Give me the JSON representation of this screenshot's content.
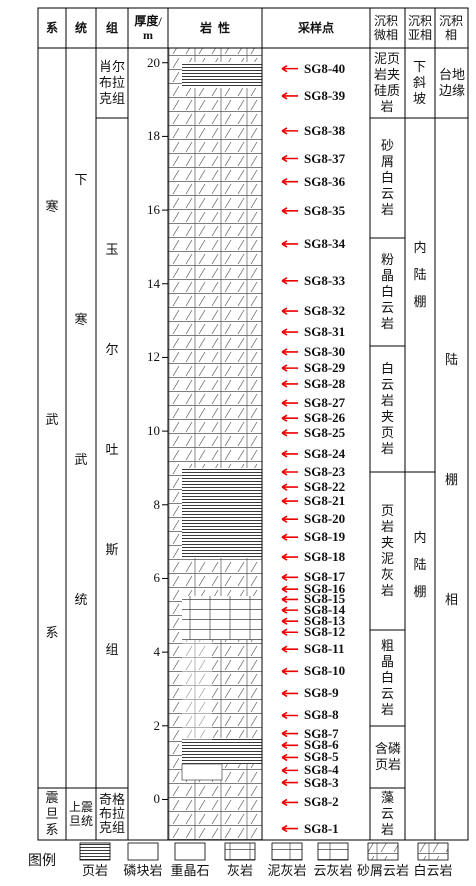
{
  "header": {
    "system": "系",
    "series": "统",
    "formation": "组",
    "thickness": "厚度/m",
    "lithology": "岩  性",
    "samples": "采样点",
    "microfacies": "沉积微相",
    "subfacies": "沉积亚相",
    "facies": "沉积相"
  },
  "systems": [
    "寒武系",
    "震旦系"
  ],
  "series_units": [
    "下寒武统",
    "上震旦统"
  ],
  "formations": [
    "肖尔布拉克组",
    "玉尔吐斯组",
    "奇格布拉克组"
  ],
  "microfacies": [
    "泥页岩夹硅质岩",
    "砂屑白云岩",
    "粉晶白云岩",
    "白云岩夹页岩",
    "页岩夹泥灰岩",
    "粗晶白云岩",
    "含磷页岩",
    "藻云岩"
  ],
  "subfacies": [
    "下斜坡",
    "内陆棚",
    "内陆棚"
  ],
  "facies": [
    "台地边缘",
    "陆棚相"
  ],
  "depth_axis": {
    "ylim": [
      -1.1,
      20.4
    ],
    "yticks": [
      0,
      2,
      4,
      6,
      8,
      10,
      12,
      14,
      16,
      18,
      20
    ]
  },
  "samples": [
    {
      "label": "SG8-40",
      "depth": 19.84
    },
    {
      "label": "SG8-39",
      "depth": 19.1
    },
    {
      "label": "SG8-38",
      "depth": 18.15
    },
    {
      "label": "SG8-37",
      "depth": 17.4
    },
    {
      "label": "SG8-36",
      "depth": 16.77
    },
    {
      "label": "SG8-35",
      "depth": 15.98
    },
    {
      "label": "SG8-34",
      "depth": 15.08
    },
    {
      "label": "SG8-33",
      "depth": 14.08
    },
    {
      "label": "SG8-32",
      "depth": 13.26
    },
    {
      "label": "SG8-31",
      "depth": 12.69
    },
    {
      "label": "SG8-30",
      "depth": 12.15
    },
    {
      "label": "SG8-29",
      "depth": 11.71
    },
    {
      "label": "SG8-28",
      "depth": 11.28
    },
    {
      "label": "SG8-27",
      "depth": 10.76
    },
    {
      "label": "SG8-26",
      "depth": 10.35
    },
    {
      "label": "SG8-25",
      "depth": 9.95
    },
    {
      "label": "SG8-24",
      "depth": 9.38
    },
    {
      "label": "SG8-23",
      "depth": 8.89
    },
    {
      "label": "SG8-22",
      "depth": 8.48
    },
    {
      "label": "SG8-21",
      "depth": 8.1
    },
    {
      "label": "SG8-20",
      "depth": 7.61
    },
    {
      "label": "SG8-19",
      "depth": 7.12
    },
    {
      "label": "SG8-18",
      "depth": 6.58
    },
    {
      "label": "SG8-17",
      "depth": 6.03
    },
    {
      "label": "SG8-16",
      "depth": 5.71
    },
    {
      "label": "SG8-15",
      "depth": 5.43
    },
    {
      "label": "SG8-14",
      "depth": 5.14
    },
    {
      "label": "SG8-13",
      "depth": 4.84
    },
    {
      "label": "SG8-12",
      "depth": 4.54
    },
    {
      "label": "SG8-11",
      "depth": 4.08
    },
    {
      "label": "SG8-10",
      "depth": 3.48
    },
    {
      "label": "SG8-9",
      "depth": 2.88
    },
    {
      "label": "SG8-8",
      "depth": 2.28
    },
    {
      "label": "SG8-7",
      "depth": 1.79
    },
    {
      "label": "SG8-6",
      "depth": 1.47
    },
    {
      "label": "SG8-5",
      "depth": 1.14
    },
    {
      "label": "SG8-4",
      "depth": 0.79
    },
    {
      "label": "SG8-3",
      "depth": 0.46
    },
    {
      "label": "SG8-2",
      "depth": -0.08
    },
    {
      "label": "SG8-1",
      "depth": -0.79
    }
  ],
  "legend": {
    "title": "图例",
    "items": [
      "页岩",
      "磷块岩",
      "重晶石",
      "灰岩",
      "泥灰岩",
      "云灰岩",
      "砂屑云岩",
      "白云岩"
    ]
  }
}
